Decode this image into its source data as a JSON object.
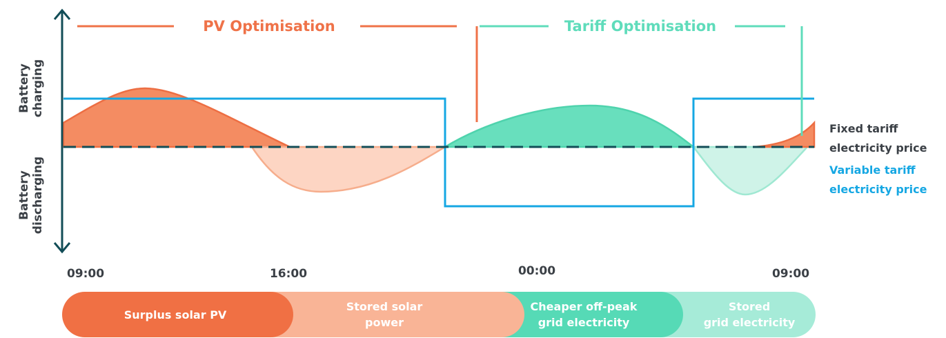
{
  "modes": {
    "pv": {
      "label": "PV Optimisation",
      "color": "#ef7248"
    },
    "tariff": {
      "label": "Tariff Optimisation",
      "color": "#5fdcbb"
    }
  },
  "y_axis": {
    "charging": [
      "Battery",
      "charging"
    ],
    "discharging": [
      "Battery",
      "discharging"
    ]
  },
  "time_ticks": [
    "09:00",
    "16:00",
    "00:00",
    "09:00"
  ],
  "legend": {
    "fixed": {
      "lines": [
        "Fixed tariff",
        "electricity price"
      ],
      "color": "#3b4046"
    },
    "variable": {
      "lines": [
        "Variable tariff",
        "electricity price"
      ],
      "color": "#15a7e3"
    }
  },
  "bands": [
    {
      "lines": [
        "Surplus solar PV"
      ],
      "color": "#f07044"
    },
    {
      "lines": [
        "Stored solar",
        "power"
      ],
      "color": "#f9b496"
    },
    {
      "lines": [
        "Cheaper off-peak",
        "grid electricity"
      ],
      "color": "#56dab6"
    },
    {
      "lines": [
        "Stored",
        "grid electricity"
      ],
      "color": "#a6ebd8"
    }
  ],
  "colors": {
    "axis": "#124d57",
    "dashed_baseline": "#124d57",
    "surplus_pv_fill": "#f48c62",
    "surplus_pv_edge": "#ed6e43",
    "stored_solar_fill": "#fdd5c3",
    "stored_solar_edge": "#f6ad8c",
    "offpeak_fill": "#68dfbd",
    "offpeak_edge": "#4fd3ad",
    "stored_grid_fill": "#cff3e8",
    "stored_grid_edge": "#9fe8d2",
    "variable_price": "#15a7e3"
  }
}
